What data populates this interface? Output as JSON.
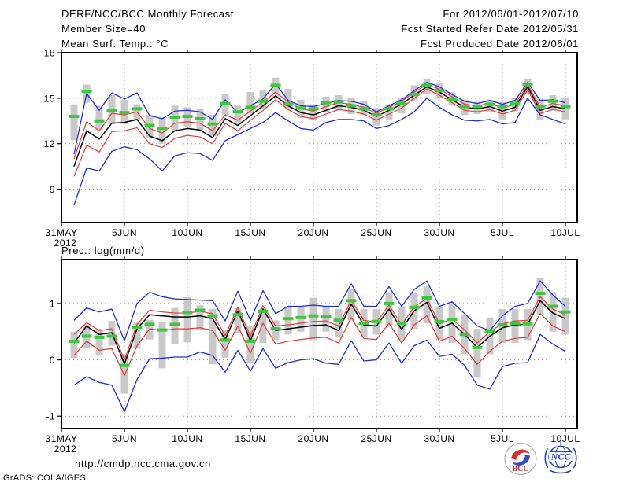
{
  "header": {
    "title": "DERF/NCC/BCC Monthly Forecast",
    "member_size": "Member Size=40",
    "for_period": "For 2012/06/01-2012/07/10",
    "refer_date": "Fcst Started Refer Date 2012/05/31",
    "produced_date": "Fcst Produced Date 2012/06/01"
  },
  "footer": {
    "url": "http://cmdp.ncc.cma.gov.cn",
    "credit": "GrADS: COLA/IGES"
  },
  "logos": {
    "bcc": "BCC",
    "ncc": "NCC"
  },
  "colors": {
    "blue": "#1e2ee0",
    "red": "#e83838",
    "black": "#000000",
    "green": "#3cc83c",
    "bar": "#c9c9c9",
    "grid": "#969696",
    "frame": "#000000"
  },
  "chart_data": [
    {
      "type": "line",
      "title": "Mean Surf. Temp.: °C",
      "x_year_label": "2012",
      "x_tick_labels": [
        "31MAY",
        "5JUN",
        "10JUN",
        "15JUN",
        "20JUN",
        "25JUN",
        "30JUN",
        "5JUL",
        "10JUL"
      ],
      "n_days": 40,
      "yticks": [
        9,
        12,
        15,
        18
      ],
      "y_tick_labels": [
        "9",
        "12",
        "15",
        "18"
      ],
      "gridlines_y": [
        9,
        12,
        15
      ],
      "ylim": [
        6.8,
        18
      ],
      "grid": true,
      "series": [
        {
          "name": "ensemble-max",
          "color": "blue",
          "values": [
            11.3,
            15.3,
            14.2,
            15.35,
            14.95,
            15.35,
            13.85,
            13.65,
            14.15,
            14.2,
            14.1,
            13.6,
            14.9,
            14.05,
            14.5,
            14.95,
            15.95,
            14.85,
            14.5,
            14.45,
            14.65,
            14.85,
            14.8,
            14.6,
            14.1,
            14.5,
            14.9,
            15.5,
            16.05,
            15.75,
            15.25,
            14.8,
            14.65,
            14.85,
            14.6,
            14.85,
            16.05,
            14.85,
            14.9,
            14.7
          ]
        },
        {
          "name": "plus-spread",
          "color": "red",
          "values": [
            11.0,
            13.45,
            12.85,
            14.0,
            13.9,
            14.1,
            13.0,
            12.7,
            13.35,
            13.45,
            13.35,
            12.85,
            13.9,
            13.55,
            14.15,
            14.75,
            15.4,
            14.75,
            14.3,
            14.15,
            14.45,
            14.7,
            14.6,
            14.4,
            14.0,
            14.4,
            14.8,
            15.4,
            15.9,
            15.6,
            15.1,
            14.6,
            14.5,
            14.65,
            14.35,
            14.6,
            15.9,
            14.4,
            14.65,
            14.5
          ]
        },
        {
          "name": "ensemble-mean",
          "color": "black",
          "values": [
            10.5,
            12.85,
            12.3,
            13.35,
            13.4,
            13.6,
            12.5,
            12.2,
            12.85,
            13.0,
            12.9,
            12.4,
            13.65,
            13.2,
            13.85,
            14.5,
            15.15,
            14.5,
            14.05,
            13.9,
            14.2,
            14.5,
            14.4,
            14.2,
            13.8,
            14.2,
            14.6,
            15.2,
            15.75,
            15.4,
            14.9,
            14.4,
            14.3,
            14.45,
            14.15,
            14.4,
            15.75,
            14.2,
            14.45,
            14.3
          ]
        },
        {
          "name": "minus-spread",
          "color": "red",
          "values": [
            9.85,
            11.9,
            11.45,
            12.8,
            12.85,
            13.05,
            12.0,
            11.75,
            12.35,
            12.55,
            12.45,
            12.0,
            13.35,
            12.85,
            13.55,
            14.2,
            14.9,
            14.25,
            13.8,
            13.65,
            13.95,
            14.25,
            14.15,
            13.95,
            13.55,
            13.95,
            14.35,
            15.0,
            15.6,
            15.2,
            14.7,
            14.2,
            14.1,
            14.25,
            13.95,
            14.2,
            15.55,
            14.0,
            14.25,
            14.1
          ]
        },
        {
          "name": "ensemble-min",
          "color": "blue",
          "values": [
            7.95,
            10.4,
            10.2,
            11.5,
            11.8,
            11.6,
            11.0,
            10.2,
            11.2,
            11.4,
            11.35,
            10.9,
            12.2,
            12.6,
            13.0,
            13.4,
            14.05,
            13.5,
            13.0,
            12.9,
            13.4,
            13.6,
            13.6,
            13.5,
            13.0,
            13.2,
            13.6,
            14.1,
            15.0,
            14.4,
            13.9,
            13.55,
            13.5,
            13.6,
            13.3,
            13.4,
            15.0,
            13.9,
            13.6,
            13.3
          ]
        },
        {
          "name": "daily-marker",
          "color": "green",
          "style": "dash",
          "values": [
            13.8,
            15.45,
            13.5,
            14.2,
            14.05,
            14.3,
            13.2,
            13.0,
            13.75,
            13.8,
            13.65,
            13.3,
            14.65,
            14.1,
            14.4,
            14.8,
            15.85,
            14.6,
            14.35,
            14.3,
            14.7,
            14.75,
            14.5,
            14.3,
            13.9,
            14.3,
            14.65,
            15.25,
            15.85,
            15.5,
            14.9,
            14.45,
            14.45,
            14.6,
            14.45,
            14.65,
            15.9,
            14.45,
            14.8,
            14.45
          ]
        }
      ],
      "spread_bars": {
        "lo": [
          12.25,
          14.7,
          12.9,
          13.3,
          13.3,
          13.5,
          12.4,
          12.0,
          12.8,
          13.1,
          12.9,
          12.5,
          13.9,
          13.3,
          14.0,
          14.3,
          15.0,
          14.3,
          13.7,
          13.6,
          14.1,
          14.2,
          13.95,
          13.9,
          13.2,
          13.6,
          14.0,
          14.8,
          15.3,
          15.0,
          14.5,
          13.9,
          13.95,
          14.1,
          13.6,
          14.15,
          15.25,
          13.55,
          14.2,
          13.6
        ],
        "hi": [
          14.6,
          15.9,
          14.5,
          15.2,
          14.9,
          14.6,
          13.9,
          13.7,
          14.5,
          14.4,
          14.3,
          13.9,
          15.3,
          14.5,
          15.4,
          15.5,
          16.35,
          15.6,
          14.9,
          14.6,
          15.1,
          15.2,
          15.0,
          14.8,
          14.35,
          14.6,
          15.0,
          15.85,
          16.3,
          16.0,
          15.4,
          14.9,
          14.75,
          14.9,
          14.75,
          15.0,
          16.3,
          14.95,
          15.2,
          15.0
        ]
      }
    },
    {
      "type": "line",
      "title": "Prec.: log(mm/d)",
      "x_year_label": "2012",
      "x_tick_labels": [
        "31MAY",
        "5JUN",
        "10JUN",
        "15JUN",
        "20JUN",
        "25JUN",
        "30JUN",
        "5JUL",
        "10JUL"
      ],
      "n_days": 40,
      "yticks": [
        -1,
        0,
        1
      ],
      "y_tick_labels": [
        "-1",
        "0",
        "1"
      ],
      "gridlines_y": [
        -1,
        0,
        1
      ],
      "ylim": [
        -1.22,
        1.78
      ],
      "grid": true,
      "series": [
        {
          "name": "ensemble-max",
          "color": "blue",
          "values": [
            0.7,
            0.92,
            0.85,
            0.9,
            0.34,
            1.0,
            1.2,
            1.12,
            1.08,
            1.07,
            1.06,
            1.05,
            0.69,
            1.22,
            0.7,
            1.23,
            0.82,
            0.95,
            0.95,
            0.97,
            0.95,
            0.95,
            1.35,
            0.95,
            0.95,
            1.3,
            0.95,
            1.25,
            1.4,
            0.95,
            1.03,
            0.82,
            0.6,
            0.52,
            0.78,
            0.95,
            1.0,
            1.4,
            1.15,
            0.95
          ]
        },
        {
          "name": "plus-spread",
          "color": "red",
          "values": [
            0.45,
            0.66,
            0.52,
            0.55,
            0.0,
            0.63,
            0.88,
            0.85,
            0.83,
            0.83,
            0.86,
            0.82,
            0.43,
            0.93,
            0.42,
            0.96,
            0.6,
            0.62,
            0.65,
            0.68,
            0.69,
            0.6,
            1.06,
            0.7,
            0.67,
            0.97,
            0.62,
            0.94,
            1.09,
            0.64,
            0.72,
            0.53,
            0.3,
            0.5,
            0.64,
            0.69,
            0.7,
            1.12,
            0.9,
            0.8
          ]
        },
        {
          "name": "ensemble-mean",
          "color": "black",
          "values": [
            0.3,
            0.6,
            0.45,
            0.48,
            -0.07,
            0.55,
            0.8,
            0.78,
            0.76,
            0.76,
            0.78,
            0.73,
            0.36,
            0.87,
            0.34,
            0.9,
            0.52,
            0.55,
            0.58,
            0.61,
            0.62,
            0.52,
            0.99,
            0.62,
            0.6,
            0.9,
            0.54,
            0.87,
            1.02,
            0.56,
            0.65,
            0.45,
            0.22,
            0.42,
            0.57,
            0.62,
            0.63,
            1.05,
            0.83,
            0.73
          ]
        },
        {
          "name": "minus-spread",
          "color": "red",
          "values": [
            0.08,
            0.33,
            0.17,
            0.2,
            -0.28,
            0.25,
            0.55,
            0.52,
            0.55,
            0.55,
            0.57,
            0.52,
            0.17,
            0.6,
            0.12,
            0.65,
            0.28,
            0.33,
            0.36,
            0.39,
            0.4,
            0.3,
            0.75,
            0.38,
            0.36,
            0.65,
            0.3,
            0.62,
            0.78,
            0.33,
            0.42,
            0.2,
            -0.08,
            0.15,
            0.33,
            0.38,
            0.4,
            0.82,
            0.6,
            0.5
          ]
        },
        {
          "name": "ensemble-min",
          "color": "blue",
          "values": [
            -0.45,
            -0.3,
            -0.4,
            -0.45,
            -0.92,
            -0.35,
            0.02,
            0.03,
            0.05,
            0.05,
            0.14,
            0.08,
            -0.22,
            0.17,
            -0.2,
            0.2,
            -0.15,
            -0.05,
            0.0,
            0.02,
            -0.06,
            -0.08,
            0.34,
            -0.02,
            0.0,
            0.3,
            -0.06,
            0.25,
            0.35,
            0.06,
            0.1,
            -0.1,
            -0.45,
            -0.52,
            -0.12,
            -0.06,
            -0.05,
            0.45,
            0.28,
            0.15
          ]
        },
        {
          "name": "daily-marker",
          "color": "green",
          "style": "dash",
          "values": [
            0.33,
            0.42,
            0.4,
            0.42,
            -0.1,
            0.58,
            0.63,
            0.53,
            0.63,
            0.84,
            0.88,
            0.78,
            0.35,
            0.8,
            0.33,
            0.86,
            0.55,
            0.73,
            0.75,
            0.78,
            0.76,
            0.7,
            1.05,
            0.65,
            0.68,
            1.0,
            0.65,
            0.93,
            1.1,
            0.68,
            0.72,
            0.45,
            0.22,
            0.5,
            0.62,
            0.65,
            0.64,
            1.18,
            0.95,
            0.85
          ]
        }
      ],
      "spread_bars": {
        "lo": [
          0.03,
          0.2,
          0.08,
          0.25,
          -0.6,
          0.2,
          0.36,
          -0.15,
          0.28,
          0.31,
          0.53,
          -0.08,
          0.04,
          0.48,
          -0.06,
          0.3,
          0.35,
          0.45,
          0.5,
          0.35,
          0.5,
          0.4,
          0.7,
          0.4,
          0.45,
          0.6,
          0.35,
          0.55,
          0.65,
          0.35,
          0.3,
          0.1,
          -0.3,
          0.1,
          0.3,
          0.3,
          0.35,
          0.8,
          0.5,
          0.45
        ],
        "hi": [
          0.5,
          0.62,
          0.55,
          0.69,
          0.1,
          0.66,
          0.71,
          0.68,
          0.92,
          1.11,
          0.97,
          0.9,
          0.53,
          0.92,
          0.59,
          0.92,
          0.7,
          0.95,
          0.95,
          1.1,
          0.95,
          0.9,
          1.25,
          0.9,
          0.9,
          1.2,
          0.95,
          1.2,
          1.3,
          0.95,
          1.0,
          0.8,
          0.55,
          0.75,
          0.9,
          0.9,
          0.9,
          1.45,
          1.2,
          1.1
        ]
      }
    }
  ]
}
